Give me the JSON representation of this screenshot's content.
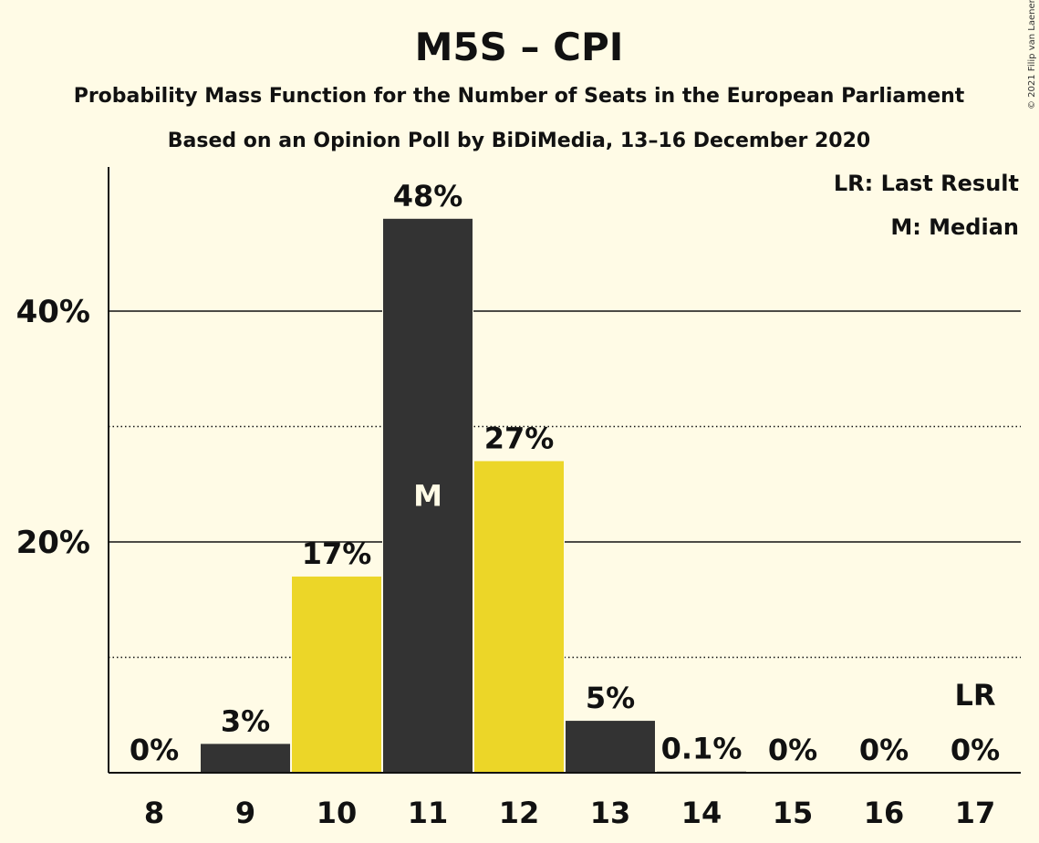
{
  "chart_data": {
    "type": "bar",
    "title": "M5S – CPI",
    "subtitle": "Probability Mass Function for the Number of Seats in the European Parliament",
    "subtitle2": "Based on an Opinion Poll by BiDiMedia, 13–16 December 2020",
    "categories": [
      "8",
      "9",
      "10",
      "11",
      "12",
      "13",
      "14",
      "15",
      "16",
      "17"
    ],
    "values": [
      0,
      2.5,
      17,
      48,
      27,
      4.5,
      0.1,
      0,
      0,
      0
    ],
    "data_labels": [
      "0%",
      "3%",
      "17%",
      "48%",
      "27%",
      "5%",
      "0.1%",
      "0%",
      "0%",
      "0%"
    ],
    "bar_colors": [
      "#333333",
      "#333333",
      "#ecd628",
      "#333333",
      "#ecd628",
      "#333333",
      "#333333",
      "#333333",
      "#333333",
      "#333333"
    ],
    "ylim": [
      0,
      52
    ],
    "yticks": [
      {
        "value": 20,
        "label": "20%"
      },
      {
        "value": 40,
        "label": "40%"
      }
    ],
    "minor_gridlines": [
      10,
      30
    ],
    "median_index": 3,
    "median_mark": "M",
    "last_result_index": 9,
    "last_result_mark": "LR",
    "legend": [
      "LR: Last Result",
      "M: Median"
    ],
    "legend_position": "top-right",
    "copyright": "© 2021 Filip van Laenen"
  }
}
